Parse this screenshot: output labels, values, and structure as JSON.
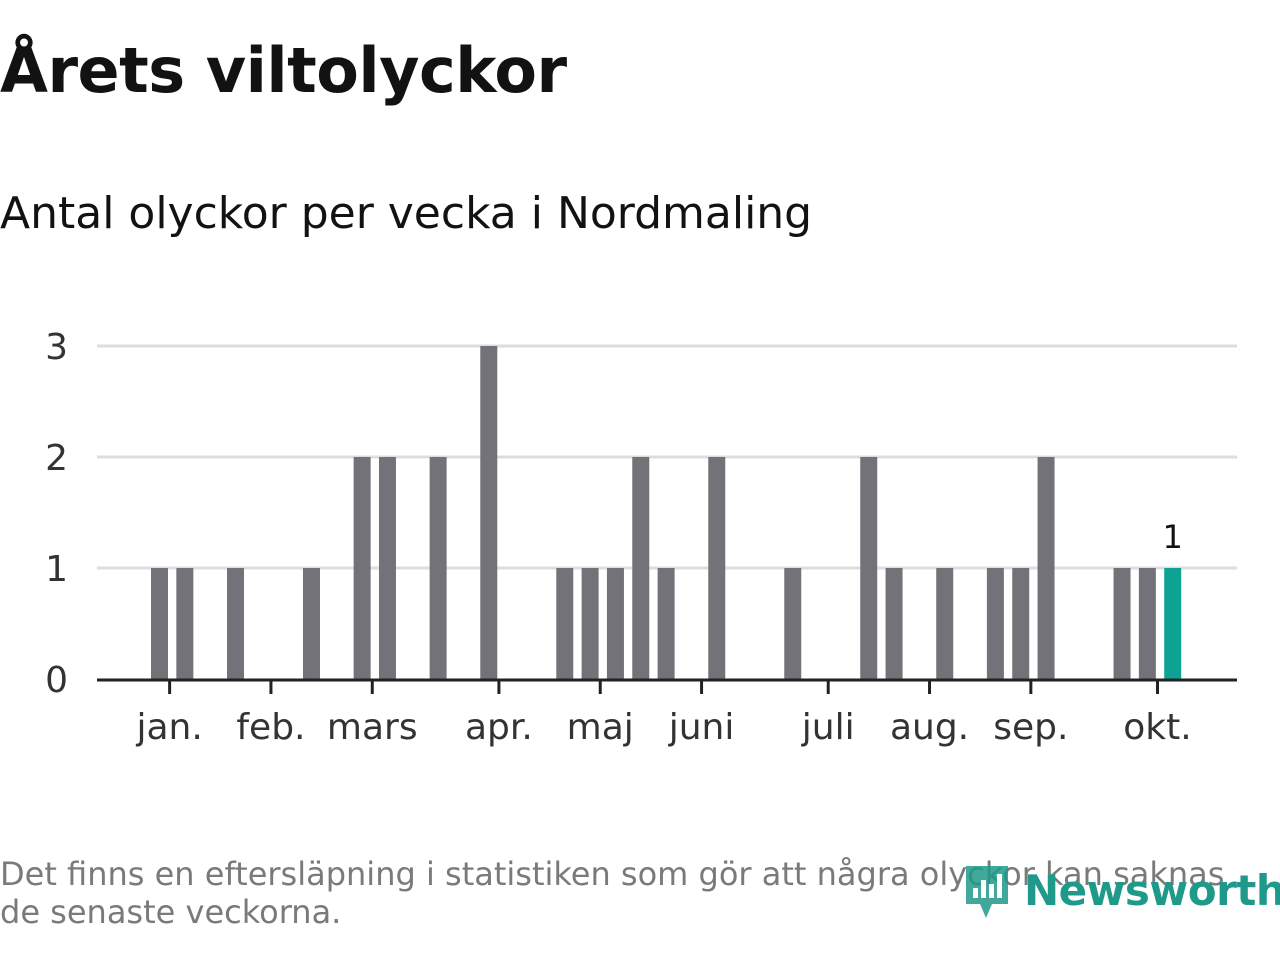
{
  "header": {
    "title": "Årets viltolyckor",
    "subtitle": "Antal olyckor per vecka i Nordmaling"
  },
  "footer": {
    "note": "Det finns en eftersläpning i statistiken som gör att några olyckor kan saknas de senaste veckorna.",
    "brand": "Newsworthy"
  },
  "colors": {
    "bar": "#737278",
    "highlight": "#0ea295",
    "grid": "#dddddd",
    "axis": "#222222",
    "text": "#121212",
    "brand": "#1f9a8a"
  },
  "chart_data": {
    "type": "bar",
    "title": "Årets viltolyckor",
    "subtitle": "Antal olyckor per vecka i Nordmaling",
    "xlabel": "",
    "ylabel": "",
    "ylim": [
      0,
      3
    ],
    "yticks": [
      0,
      1,
      2,
      3
    ],
    "grid": true,
    "x": [
      1,
      2,
      3,
      4,
      5,
      6,
      7,
      8,
      9,
      10,
      11,
      12,
      13,
      14,
      15,
      16,
      17,
      18,
      19,
      20,
      21,
      22,
      23,
      24,
      25,
      26,
      27,
      28,
      29,
      30,
      31,
      32,
      33,
      34,
      35,
      36,
      37,
      38,
      39,
      40,
      41
    ],
    "values": [
      1,
      1,
      0,
      1,
      0,
      0,
      1,
      0,
      2,
      2,
      0,
      2,
      0,
      3,
      0,
      0,
      1,
      1,
      1,
      2,
      1,
      0,
      2,
      0,
      0,
      1,
      0,
      0,
      2,
      1,
      0,
      1,
      0,
      1,
      1,
      2,
      0,
      0,
      1,
      1,
      1
    ],
    "highlight_index": 40,
    "highlight_label": "1",
    "month_ticks": [
      {
        "label": "jan.",
        "week": 1.4
      },
      {
        "label": "feb.",
        "week": 5.4
      },
      {
        "label": "mars",
        "week": 9.4
      },
      {
        "label": "apr.",
        "week": 14.4
      },
      {
        "label": "maj",
        "week": 18.4
      },
      {
        "label": "juni",
        "week": 22.4
      },
      {
        "label": "juli",
        "week": 27.4
      },
      {
        "label": "aug.",
        "week": 31.4
      },
      {
        "label": "sep.",
        "week": 35.4
      },
      {
        "label": "okt.",
        "week": 40.4
      }
    ]
  }
}
